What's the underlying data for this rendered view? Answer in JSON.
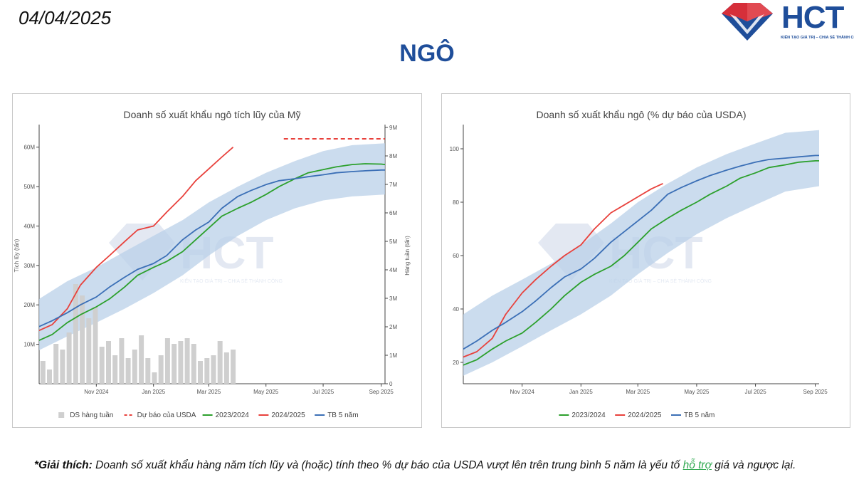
{
  "header": {
    "date": "04/04/2025",
    "title": "NGÔ",
    "logo": {
      "text": "HCT",
      "tagline": "KIẾN TẠO GIÁ TRỊ – CHIA SẺ THÀNH CÔNG"
    }
  },
  "footnote": {
    "lead": "*Giải thích:",
    "text1": " Doanh số xuất khẩu hàng năm tích lũy và (hoặc) tính theo % dự báo của USDA vượt lên trên trung bình 5 năm là yếu tố ",
    "highlight": "hỗ trợ",
    "text2": " giá và ngược lại."
  },
  "colors": {
    "green": "#2ca02c",
    "red": "#e8413c",
    "blue": "#3b6fb6",
    "band": "#b9d0e8",
    "bars": "#cfcfcf",
    "brand": "#1f4e9a"
  },
  "chart_data": [
    {
      "type": "line",
      "title": "Doanh số xuất khẩu ngô tích lũy của Mỹ",
      "ylabel": "Tích lũy (tấn)",
      "y2label": "Hàng tuần (tấn)",
      "xlim": [
        "2024-09-01",
        "2025-09-05"
      ],
      "ylim": [
        0,
        65000000
      ],
      "y2lim": [
        0,
        9000000
      ],
      "x_ticks": [
        {
          "date": "2024-11-01",
          "label": "Nov 2024"
        },
        {
          "date": "2025-01-01",
          "label": "Jan 2025"
        },
        {
          "date": "2025-03-01",
          "label": "Mar 2025"
        },
        {
          "date": "2025-05-01",
          "label": "May 2025"
        },
        {
          "date": "2025-07-01",
          "label": "Jul 2025"
        },
        {
          "date": "2025-09-01",
          "label": "Sep 2025"
        }
      ],
      "y_ticks": [
        {
          "value": 10000000,
          "label": "10M"
        },
        {
          "value": 20000000,
          "label": "20M"
        },
        {
          "value": 30000000,
          "label": "30M"
        },
        {
          "value": 40000000,
          "label": "40M"
        },
        {
          "value": 50000000,
          "label": "50M"
        },
        {
          "value": 60000000,
          "label": "60M"
        }
      ],
      "y2_ticks": [
        {
          "value": 0,
          "label": "0"
        },
        {
          "value": 1000000,
          "label": "1M"
        },
        {
          "value": 2000000,
          "label": "2M"
        },
        {
          "value": 3000000,
          "label": "3M"
        },
        {
          "value": 4000000,
          "label": "4M"
        },
        {
          "value": 5000000,
          "label": "5M"
        },
        {
          "value": 6000000,
          "label": "6M"
        },
        {
          "value": 7000000,
          "label": "7M"
        },
        {
          "value": 8000000,
          "label": "8M"
        },
        {
          "value": 9000000,
          "label": "9M"
        }
      ],
      "legend": [
        {
          "name": "DS hàng tuần",
          "kind": "bar",
          "color": "#cfcfcf"
        },
        {
          "name": "Dự báo của USDA",
          "kind": "dash",
          "color": "#e8413c"
        },
        {
          "name": "2023/2024",
          "kind": "line",
          "color": "#2ca02c"
        },
        {
          "name": "2024/2025",
          "kind": "line",
          "color": "#e8413c"
        },
        {
          "name": "TB 5 năm",
          "kind": "line",
          "color": "#3b6fb6"
        }
      ],
      "legend_position": "bottom",
      "usda_forecast": {
        "value": 62100000,
        "x_start": "2025-05-20",
        "x_end": "2025-09-05"
      },
      "weekly_bars": {
        "x": [
          "2024-09-05",
          "2024-09-12",
          "2024-09-19",
          "2024-09-26",
          "2024-10-03",
          "2024-10-10",
          "2024-10-17",
          "2024-10-24",
          "2024-10-31",
          "2024-11-07",
          "2024-11-14",
          "2024-11-21",
          "2024-11-28",
          "2024-12-05",
          "2024-12-12",
          "2024-12-19",
          "2024-12-26",
          "2025-01-02",
          "2025-01-09",
          "2025-01-16",
          "2025-01-23",
          "2025-01-30",
          "2025-02-06",
          "2025-02-13",
          "2025-02-20",
          "2025-02-27",
          "2025-03-06",
          "2025-03-13",
          "2025-03-20",
          "2025-03-27"
        ],
        "values": [
          800000,
          500000,
          1400000,
          1200000,
          1800000,
          3500000,
          3100000,
          2300000,
          2700000,
          1300000,
          1500000,
          1000000,
          1600000,
          900000,
          1200000,
          1700000,
          900000,
          400000,
          1000000,
          1600000,
          1400000,
          1500000,
          1600000,
          1400000,
          800000,
          900000,
          1000000,
          1500000,
          1100000,
          1200000
        ]
      },
      "band": {
        "x": [
          "2024-09-01",
          "2024-10-01",
          "2024-11-01",
          "2024-12-01",
          "2025-01-01",
          "2025-02-01",
          "2025-03-01",
          "2025-04-01",
          "2025-05-01",
          "2025-06-01",
          "2025-07-01",
          "2025-08-01",
          "2025-09-05"
        ],
        "upper": [
          21500000,
          26000000,
          29500000,
          33500000,
          37500000,
          41500000,
          46000000,
          50000000,
          53500000,
          56500000,
          59000000,
          60500000,
          61000000
        ],
        "lower": [
          8500000,
          12000000,
          15500000,
          19000000,
          23000000,
          27500000,
          32500000,
          37500000,
          41500000,
          44500000,
          46500000,
          47500000,
          48000000
        ]
      },
      "series": [
        {
          "name": "2023/2024",
          "color": "#2ca02c",
          "x": [
            "2024-09-01",
            "2024-09-15",
            "2024-10-01",
            "2024-10-15",
            "2024-11-01",
            "2024-11-15",
            "2024-12-01",
            "2024-12-15",
            "2025-01-01",
            "2025-01-15",
            "2025-02-01",
            "2025-02-15",
            "2025-03-01",
            "2025-03-15",
            "2025-04-01",
            "2025-04-15",
            "2025-05-01",
            "2025-05-15",
            "2025-06-01",
            "2025-06-15",
            "2025-07-01",
            "2025-07-15",
            "2025-08-01",
            "2025-08-15",
            "2025-09-01",
            "2025-09-05"
          ],
          "y": [
            11000000,
            12500000,
            15500000,
            17500000,
            19500000,
            21500000,
            24500000,
            27500000,
            29500000,
            31000000,
            33500000,
            36500000,
            39500000,
            42500000,
            44500000,
            46000000,
            48000000,
            50000000,
            52000000,
            53500000,
            54300000,
            55000000,
            55600000,
            55800000,
            55700000,
            55600000
          ]
        },
        {
          "name": "2024/2025",
          "color": "#e8413c",
          "x": [
            "2024-09-01",
            "2024-09-15",
            "2024-10-01",
            "2024-10-15",
            "2024-11-01",
            "2024-11-15",
            "2024-12-01",
            "2024-12-15",
            "2025-01-01",
            "2025-01-15",
            "2025-02-01",
            "2025-02-15",
            "2025-03-01",
            "2025-03-15",
            "2025-03-27"
          ],
          "y": [
            13500000,
            15000000,
            19000000,
            25000000,
            29500000,
            32500000,
            36000000,
            39000000,
            40000000,
            43500000,
            47500000,
            51500000,
            54500000,
            57500000,
            60000000
          ]
        },
        {
          "name": "TB 5 năm",
          "color": "#3b6fb6",
          "x": [
            "2024-09-01",
            "2024-09-15",
            "2024-10-01",
            "2024-10-15",
            "2024-11-01",
            "2024-11-15",
            "2024-12-01",
            "2024-12-15",
            "2025-01-01",
            "2025-01-15",
            "2025-02-01",
            "2025-02-15",
            "2025-03-01",
            "2025-03-15",
            "2025-04-01",
            "2025-04-15",
            "2025-05-01",
            "2025-05-15",
            "2025-06-01",
            "2025-06-15",
            "2025-07-01",
            "2025-07-15",
            "2025-08-01",
            "2025-08-15",
            "2025-09-01",
            "2025-09-05"
          ],
          "y": [
            14500000,
            16000000,
            18000000,
            20000000,
            22000000,
            24500000,
            27000000,
            29000000,
            30500000,
            32500000,
            36500000,
            39000000,
            41000000,
            44500000,
            47500000,
            49000000,
            50500000,
            51500000,
            52000000,
            52500000,
            53000000,
            53500000,
            53800000,
            54000000,
            54200000,
            54200000
          ]
        }
      ]
    },
    {
      "type": "line",
      "title": "Doanh số xuất khẩu ngô (% dự báo của USDA)",
      "xlim": [
        "2024-09-01",
        "2025-09-05"
      ],
      "ylim": [
        12,
        108
      ],
      "x_ticks": [
        {
          "date": "2024-11-01",
          "label": "Nov 2024"
        },
        {
          "date": "2025-01-01",
          "label": "Jan 2025"
        },
        {
          "date": "2025-03-01",
          "label": "Mar 2025"
        },
        {
          "date": "2025-05-01",
          "label": "May 2025"
        },
        {
          "date": "2025-07-01",
          "label": "Jul 2025"
        },
        {
          "date": "2025-09-01",
          "label": "Sep 2025"
        }
      ],
      "y_ticks": [
        {
          "value": 20,
          "label": "20"
        },
        {
          "value": 40,
          "label": "40"
        },
        {
          "value": 60,
          "label": "60"
        },
        {
          "value": 80,
          "label": "80"
        },
        {
          "value": 100,
          "label": "100"
        }
      ],
      "legend": [
        {
          "name": "2023/2024",
          "kind": "line",
          "color": "#2ca02c"
        },
        {
          "name": "2024/2025",
          "kind": "line",
          "color": "#e8413c"
        },
        {
          "name": "TB 5 năm",
          "kind": "line",
          "color": "#3b6fb6"
        }
      ],
      "legend_position": "bottom",
      "band": {
        "x": [
          "2024-09-01",
          "2024-10-01",
          "2024-11-01",
          "2024-12-01",
          "2025-01-01",
          "2025-02-01",
          "2025-03-01",
          "2025-04-01",
          "2025-05-01",
          "2025-06-01",
          "2025-07-01",
          "2025-08-01",
          "2025-09-05"
        ],
        "upper": [
          38000000,
          45000000,
          51000000,
          57000000,
          64000000,
          72000000,
          80000000,
          87000000,
          93000000,
          98000000,
          102000000,
          106000000,
          107000000
        ],
        "lower": [
          15000000,
          20000000,
          26000000,
          32000000,
          38000000,
          45000000,
          53000000,
          61000000,
          68000000,
          74000000,
          79000000,
          84000000,
          86000000
        ]
      },
      "series": [
        {
          "name": "2023/2024",
          "color": "#2ca02c",
          "x": [
            "2024-09-01",
            "2024-09-15",
            "2024-10-01",
            "2024-10-15",
            "2024-11-01",
            "2024-11-15",
            "2024-12-01",
            "2024-12-15",
            "2025-01-01",
            "2025-01-15",
            "2025-02-01",
            "2025-02-15",
            "2025-03-01",
            "2025-03-15",
            "2025-04-01",
            "2025-04-15",
            "2025-05-01",
            "2025-05-15",
            "2025-06-01",
            "2025-06-15",
            "2025-07-01",
            "2025-07-15",
            "2025-08-01",
            "2025-08-15",
            "2025-09-01",
            "2025-09-05"
          ],
          "y": [
            19,
            21,
            25,
            28,
            31,
            35,
            40,
            45,
            50,
            53,
            56,
            60,
            65,
            70,
            74,
            77,
            80,
            83,
            86,
            89,
            91,
            93,
            94,
            95,
            95.5,
            95.5
          ]
        },
        {
          "name": "2024/2025",
          "color": "#e8413c",
          "x": [
            "2024-09-01",
            "2024-09-15",
            "2024-10-01",
            "2024-10-15",
            "2024-11-01",
            "2024-11-15",
            "2024-12-01",
            "2024-12-15",
            "2025-01-01",
            "2025-01-15",
            "2025-02-01",
            "2025-02-15",
            "2025-03-01",
            "2025-03-15",
            "2025-03-27"
          ],
          "y": [
            22,
            24,
            29,
            38,
            46,
            51,
            56,
            60,
            64,
            70,
            76,
            79,
            82,
            85,
            87
          ]
        },
        {
          "name": "TB 5 năm",
          "color": "#3b6fb6",
          "x": [
            "2024-09-01",
            "2024-09-15",
            "2024-10-01",
            "2024-10-15",
            "2024-11-01",
            "2024-11-15",
            "2024-12-01",
            "2024-12-15",
            "2025-01-01",
            "2025-01-15",
            "2025-02-01",
            "2025-02-15",
            "2025-03-01",
            "2025-03-15",
            "2025-04-01",
            "2025-04-15",
            "2025-05-01",
            "2025-05-15",
            "2025-06-01",
            "2025-06-15",
            "2025-07-01",
            "2025-07-15",
            "2025-08-01",
            "2025-08-15",
            "2025-09-01",
            "2025-09-05"
          ],
          "y": [
            25,
            28,
            32,
            35,
            39,
            43,
            48,
            52,
            55,
            59,
            65,
            69,
            73,
            77,
            83,
            85.5,
            88,
            90,
            92,
            93.5,
            95,
            96,
            96.5,
            97,
            97.5,
            97.5
          ]
        }
      ]
    }
  ]
}
